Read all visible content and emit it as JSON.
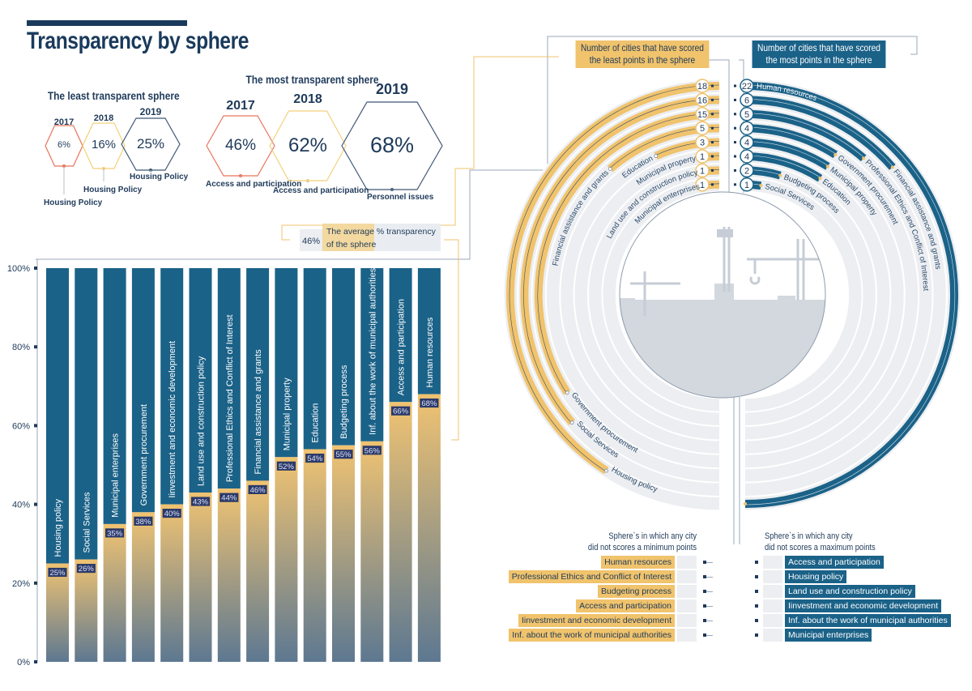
{
  "title": "Transparency by sphere",
  "least": {
    "heading": "The least transparent sphere",
    "items": [
      {
        "year": "2017",
        "value": "6%",
        "sphere": "Housing Policy",
        "color": "#e8735a"
      },
      {
        "year": "2018",
        "value": "16%",
        "sphere": "Housing Policy",
        "color": "#f3cf7a"
      },
      {
        "year": "2019",
        "value": "25%",
        "sphere": "Housing Policy",
        "color": "#3d5673"
      }
    ]
  },
  "most": {
    "heading": "The most transparent sphere",
    "items": [
      {
        "year": "2017",
        "value": "46%",
        "sphere": "Access and participation",
        "color": "#e8735a"
      },
      {
        "year": "2018",
        "value": "62%",
        "sphere": "Access and participation",
        "color": "#f3cf7a"
      },
      {
        "year": "2019",
        "value": "68%",
        "sphere": "Personnel issues",
        "color": "#3d5673"
      }
    ]
  },
  "average": {
    "value": "46%",
    "label_line1": "The average % transparency",
    "label_line2": "of the sphere"
  },
  "legend": {
    "least_line1": "Number of cities that have scored",
    "least_line2": "the least points in the sphere",
    "most_line1": "Number of cities that have scored",
    "most_line2": "the most points in the sphere"
  },
  "colors": {
    "blue": "#1b6288",
    "yellow": "#f0c36c",
    "navy": "#1f3a5a",
    "gray": "#eceef1",
    "red": "#e8735a"
  },
  "no_min": {
    "line1": "Sphere`s in which any city",
    "line2": "did not scores a minimum points",
    "items": [
      "Human resources",
      "Professional Ethics and Conflict of Interest",
      "Budgeting process",
      "Access and participation",
      "Iinvestment and economic development",
      "Inf. about the work of municipal authorities"
    ]
  },
  "no_max": {
    "line1": "Sphere`s in which any city",
    "line2": "did not scores a maximum points",
    "items": [
      "Access and participation",
      "Housing policy",
      "Land use and construction policy",
      "Iinvestment and economic development",
      "Inf. about the work of municipal authorities",
      "Municipal enterprises"
    ]
  },
  "chart_data": [
    {
      "type": "bar",
      "stacked_to": 100,
      "ylim": [
        0,
        100
      ],
      "yticks": [
        "0%",
        "20%",
        "40%",
        "60%",
        "80%",
        "100%"
      ],
      "categories": [
        "Housing policy",
        "Social Services",
        "Municipal enterprises",
        "Government procurement",
        "Iinvestment and economic development",
        "Land use and construction policy",
        "Professional Ethics and Conflict of Interest",
        "Financial assistance and grants",
        "Municipal property",
        "Education",
        "Budgeting process",
        "Inf. about the work of municipal authorities",
        "Access and participation",
        "Human resources"
      ],
      "values": [
        25,
        26,
        35,
        38,
        40,
        43,
        44,
        46,
        52,
        54,
        55,
        56,
        66,
        68
      ],
      "value_labels": [
        "25%",
        "26%",
        "35%",
        "38%",
        "40%",
        "43%",
        "44%",
        "46%",
        "52%",
        "54%",
        "55%",
        "56%",
        "66%",
        "68%"
      ]
    },
    {
      "type": "bar",
      "layout": "radial",
      "max": 22,
      "series": [
        {
          "name": "Number of cities that have scored the least points in the sphere",
          "color": "#f0c36c",
          "categories": [
            "Housing policy",
            "Social Services",
            "Government procurement",
            "Financial assistance and grants",
            "Education",
            "Municipal property",
            "Land use and construction policy",
            "Municipal enterprises"
          ],
          "values": [
            18,
            16,
            15,
            5,
            3,
            1,
            1,
            1
          ]
        },
        {
          "name": "Number of cities that have scored the most points in the sphere",
          "color": "#1b6288",
          "categories": [
            "Human resources",
            "Financial assistance and grants",
            "Professional Ethics and Conflict of Interest",
            "Government procurement",
            "Municipal property",
            "Education",
            "Budgeting process",
            "Social Services"
          ],
          "values": [
            22,
            6,
            5,
            4,
            4,
            4,
            2,
            1
          ]
        }
      ]
    }
  ]
}
